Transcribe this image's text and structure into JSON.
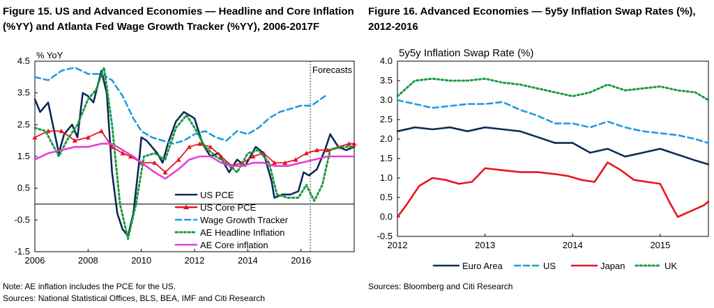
{
  "left": {
    "title_line1": "Figure 15. US and Advanced Economies — Headline and Core Inflation",
    "title_line2": "(%YY) and Atlanta Fed Wage Growth Tracker (%YY), 2006-2017F",
    "note": "Note: AE inflation includes the PCE for the US.",
    "sources": "Sources: National Statistical Offices, BLS, BEA, IMF and Citi Research"
  },
  "right": {
    "title_line1": "Figure 16.  Advanced Economies — 5y5y Inflation Swap Rates (%),",
    "title_line2": "2012-2016",
    "sources": "Sources: Bloomberg and Citi Research"
  },
  "chart_data": [
    {
      "type": "line",
      "ylabel": "% YoY",
      "annotation": "Forecasts",
      "forecast_start": 2016.35,
      "xlim": [
        2006,
        2018
      ],
      "ylim": [
        -1.5,
        4.5
      ],
      "xticks": [
        "2006",
        "2008",
        "2010",
        "2012",
        "2014",
        "2016"
      ],
      "yticks": [
        "4.5",
        "3.5",
        "2.5",
        "1.5",
        "0.5",
        "-0.5",
        "-1.5"
      ],
      "legend_position": "bottom-center",
      "series": [
        {
          "name": "US PCE",
          "color": "#0d2a57",
          "style": "solid",
          "x": [
            2006,
            2006.2,
            2006.5,
            2006.7,
            2006.9,
            2007.1,
            2007.4,
            2007.6,
            2007.8,
            2008.0,
            2008.2,
            2008.5,
            2008.7,
            2008.9,
            2009.1,
            2009.3,
            2009.5,
            2009.7,
            2009.9,
            2010.0,
            2010.2,
            2010.4,
            2010.6,
            2010.8,
            2011.0,
            2011.3,
            2011.6,
            2011.8,
            2012.0,
            2012.3,
            2012.6,
            2012.9,
            2013.1,
            2013.3,
            2013.6,
            2013.9,
            2014.1,
            2014.3,
            2014.6,
            2014.9,
            2015.0,
            2015.3,
            2015.6,
            2015.9,
            2016.1,
            2016.3,
            2016.6,
            2016.9,
            2017.1,
            2017.4,
            2017.7,
            2018
          ],
          "y": [
            3.3,
            2.9,
            3.2,
            2.4,
            1.6,
            2.2,
            2.5,
            2.1,
            3.5,
            3.4,
            3.2,
            4.2,
            3.5,
            1.0,
            -0.3,
            -0.8,
            -1.0,
            -0.3,
            1.2,
            2.1,
            2.0,
            1.8,
            1.6,
            1.3,
            1.9,
            2.6,
            2.9,
            2.8,
            2.7,
            1.9,
            1.5,
            1.6,
            1.3,
            1.0,
            1.4,
            1.2,
            1.5,
            1.8,
            1.6,
            0.7,
            0.2,
            0.3,
            0.3,
            0.4,
            1.0,
            0.9,
            1.1,
            1.7,
            2.2,
            1.8,
            1.7,
            1.8
          ]
        },
        {
          "name": "US Core PCE",
          "color": "#e8141f",
          "style": "marker",
          "x": [
            2006,
            2006.5,
            2007.0,
            2007.5,
            2008.0,
            2008.5,
            2008.9,
            2009.3,
            2009.6,
            2010.0,
            2010.5,
            2010.9,
            2011.4,
            2011.8,
            2012.2,
            2012.6,
            2013.0,
            2013.4,
            2013.8,
            2014.2,
            2014.6,
            2015.0,
            2015.4,
            2015.8,
            2016.2,
            2016.6,
            2017.0,
            2017.4,
            2017.8,
            2018
          ],
          "y": [
            2.1,
            2.3,
            2.3,
            2.0,
            2.1,
            2.3,
            1.8,
            1.6,
            1.5,
            1.3,
            1.3,
            1.0,
            1.4,
            1.8,
            1.9,
            1.8,
            1.5,
            1.2,
            1.3,
            1.5,
            1.6,
            1.3,
            1.3,
            1.4,
            1.6,
            1.7,
            1.7,
            1.8,
            1.9,
            1.9
          ]
        },
        {
          "name": "Wage Growth Tracker",
          "color": "#1f9be0",
          "style": "dash",
          "x": [
            2006,
            2006.5,
            2007.0,
            2007.5,
            2008.0,
            2008.5,
            2008.9,
            2009.3,
            2009.7,
            2010.0,
            2010.4,
            2010.8,
            2011.2,
            2011.6,
            2012.0,
            2012.4,
            2012.8,
            2013.2,
            2013.6,
            2014.0,
            2014.4,
            2014.8,
            2015.2,
            2015.6,
            2016.0,
            2016.4,
            2016.9
          ],
          "y": [
            4.0,
            3.9,
            4.2,
            4.3,
            4.1,
            4.1,
            3.9,
            3.4,
            2.7,
            2.3,
            2.1,
            2.0,
            1.9,
            2.0,
            2.2,
            2.3,
            2.1,
            2.0,
            2.3,
            2.2,
            2.4,
            2.7,
            2.9,
            3.0,
            3.1,
            3.1,
            3.4
          ]
        },
        {
          "name": "AE Headline Inflation",
          "color": "#1a9b41",
          "style": "dot",
          "x": [
            2006,
            2006.4,
            2006.9,
            2007.2,
            2007.6,
            2008.0,
            2008.3,
            2008.6,
            2008.9,
            2009.2,
            2009.5,
            2009.8,
            2010.1,
            2010.5,
            2010.9,
            2011.3,
            2011.7,
            2012.0,
            2012.4,
            2012.8,
            2013.2,
            2013.6,
            2014.0,
            2014.4,
            2014.8,
            2015.1,
            2015.5,
            2015.9,
            2016.2,
            2016.5,
            2016.8,
            2017.1,
            2017.5,
            2018
          ],
          "y": [
            2.4,
            2.3,
            1.5,
            2.0,
            2.5,
            3.3,
            3.6,
            4.3,
            2.5,
            0.0,
            -1.1,
            0.0,
            1.5,
            1.6,
            1.4,
            2.4,
            2.8,
            2.4,
            1.8,
            1.5,
            1.3,
            1.0,
            1.6,
            1.7,
            1.3,
            0.3,
            0.2,
            0.2,
            0.6,
            0.1,
            0.6,
            1.7,
            1.8,
            1.8
          ]
        },
        {
          "name": "AE Core inflation",
          "color": "#e440d8",
          "style": "solid",
          "x": [
            2006,
            2006.5,
            2007.0,
            2007.5,
            2008.0,
            2008.5,
            2008.9,
            2009.3,
            2009.7,
            2010.0,
            2010.5,
            2010.9,
            2011.4,
            2011.8,
            2012.2,
            2012.6,
            2013.0,
            2013.4,
            2013.8,
            2014.2,
            2014.6,
            2015.0,
            2015.5,
            2016.0,
            2016.5,
            2017.0,
            2017.5,
            2018
          ],
          "y": [
            1.4,
            1.6,
            1.7,
            1.8,
            1.8,
            1.9,
            1.9,
            1.7,
            1.5,
            1.3,
            1.0,
            0.8,
            1.1,
            1.4,
            1.5,
            1.5,
            1.3,
            1.2,
            1.2,
            1.3,
            1.3,
            1.2,
            1.2,
            1.3,
            1.4,
            1.5,
            1.5,
            1.5
          ]
        }
      ]
    },
    {
      "type": "line",
      "title": "5y5y Inflation Swap Rate (%)",
      "xlim": [
        2012,
        2015.55
      ],
      "ylim": [
        -0.5,
        4.0
      ],
      "xticks": [
        "2012",
        "2013",
        "2014",
        "2015"
      ],
      "yticks": [
        "4.0",
        "3.5",
        "3.0",
        "2.5",
        "2.0",
        "1.5",
        "1.0",
        "0.5",
        "0.0",
        "-0.5"
      ],
      "legend_position": "bottom",
      "series": [
        {
          "name": "Euro Area",
          "color": "#0d2a57",
          "style": "solid",
          "x": [
            2012,
            2012.2,
            2012.4,
            2012.6,
            2012.8,
            2013.0,
            2013.2,
            2013.4,
            2013.6,
            2013.8,
            2014.0,
            2014.2,
            2014.4,
            2014.6,
            2014.8,
            2015.0,
            2015.2,
            2015.4,
            2015.55
          ],
          "y": [
            2.2,
            2.3,
            2.25,
            2.3,
            2.2,
            2.3,
            2.25,
            2.2,
            2.05,
            1.9,
            1.9,
            1.65,
            1.75,
            1.55,
            1.65,
            1.75,
            1.6,
            1.45,
            1.35
          ]
        },
        {
          "name": "US",
          "color": "#1f9be0",
          "style": "dash",
          "x": [
            2012,
            2012.2,
            2012.4,
            2012.6,
            2012.8,
            2013.0,
            2013.2,
            2013.4,
            2013.6,
            2013.8,
            2014.0,
            2014.2,
            2014.4,
            2014.6,
            2014.8,
            2015.0,
            2015.2,
            2015.4,
            2015.55
          ],
          "y": [
            3.0,
            2.9,
            2.8,
            2.85,
            2.9,
            2.9,
            2.95,
            2.75,
            2.6,
            2.4,
            2.4,
            2.3,
            2.45,
            2.3,
            2.2,
            2.15,
            2.1,
            2.0,
            1.9
          ]
        },
        {
          "name": "Japan",
          "color": "#e8141f",
          "style": "solid",
          "x": [
            2012,
            2012.1,
            2012.25,
            2012.4,
            2012.55,
            2012.7,
            2012.85,
            2013.0,
            2013.2,
            2013.4,
            2013.6,
            2013.8,
            2013.95,
            2014.1,
            2014.25,
            2014.4,
            2014.55,
            2014.7,
            2014.85,
            2015.0,
            2015.1,
            2015.2,
            2015.35,
            2015.5,
            2015.55
          ],
          "y": [
            0.0,
            0.3,
            0.8,
            1.0,
            0.95,
            0.85,
            0.9,
            1.25,
            1.2,
            1.15,
            1.15,
            1.1,
            1.05,
            0.95,
            0.9,
            1.4,
            1.2,
            0.95,
            0.9,
            0.85,
            0.4,
            0.0,
            0.15,
            0.3,
            0.4
          ]
        },
        {
          "name": "UK",
          "color": "#1a9b41",
          "style": "dot",
          "x": [
            2012,
            2012.2,
            2012.4,
            2012.6,
            2012.8,
            2013.0,
            2013.2,
            2013.4,
            2013.6,
            2013.8,
            2014.0,
            2014.2,
            2014.4,
            2014.6,
            2014.8,
            2015.0,
            2015.2,
            2015.4,
            2015.55
          ],
          "y": [
            3.1,
            3.5,
            3.55,
            3.5,
            3.5,
            3.55,
            3.45,
            3.4,
            3.3,
            3.2,
            3.1,
            3.2,
            3.4,
            3.25,
            3.3,
            3.35,
            3.25,
            3.2,
            3.0
          ]
        }
      ]
    }
  ]
}
